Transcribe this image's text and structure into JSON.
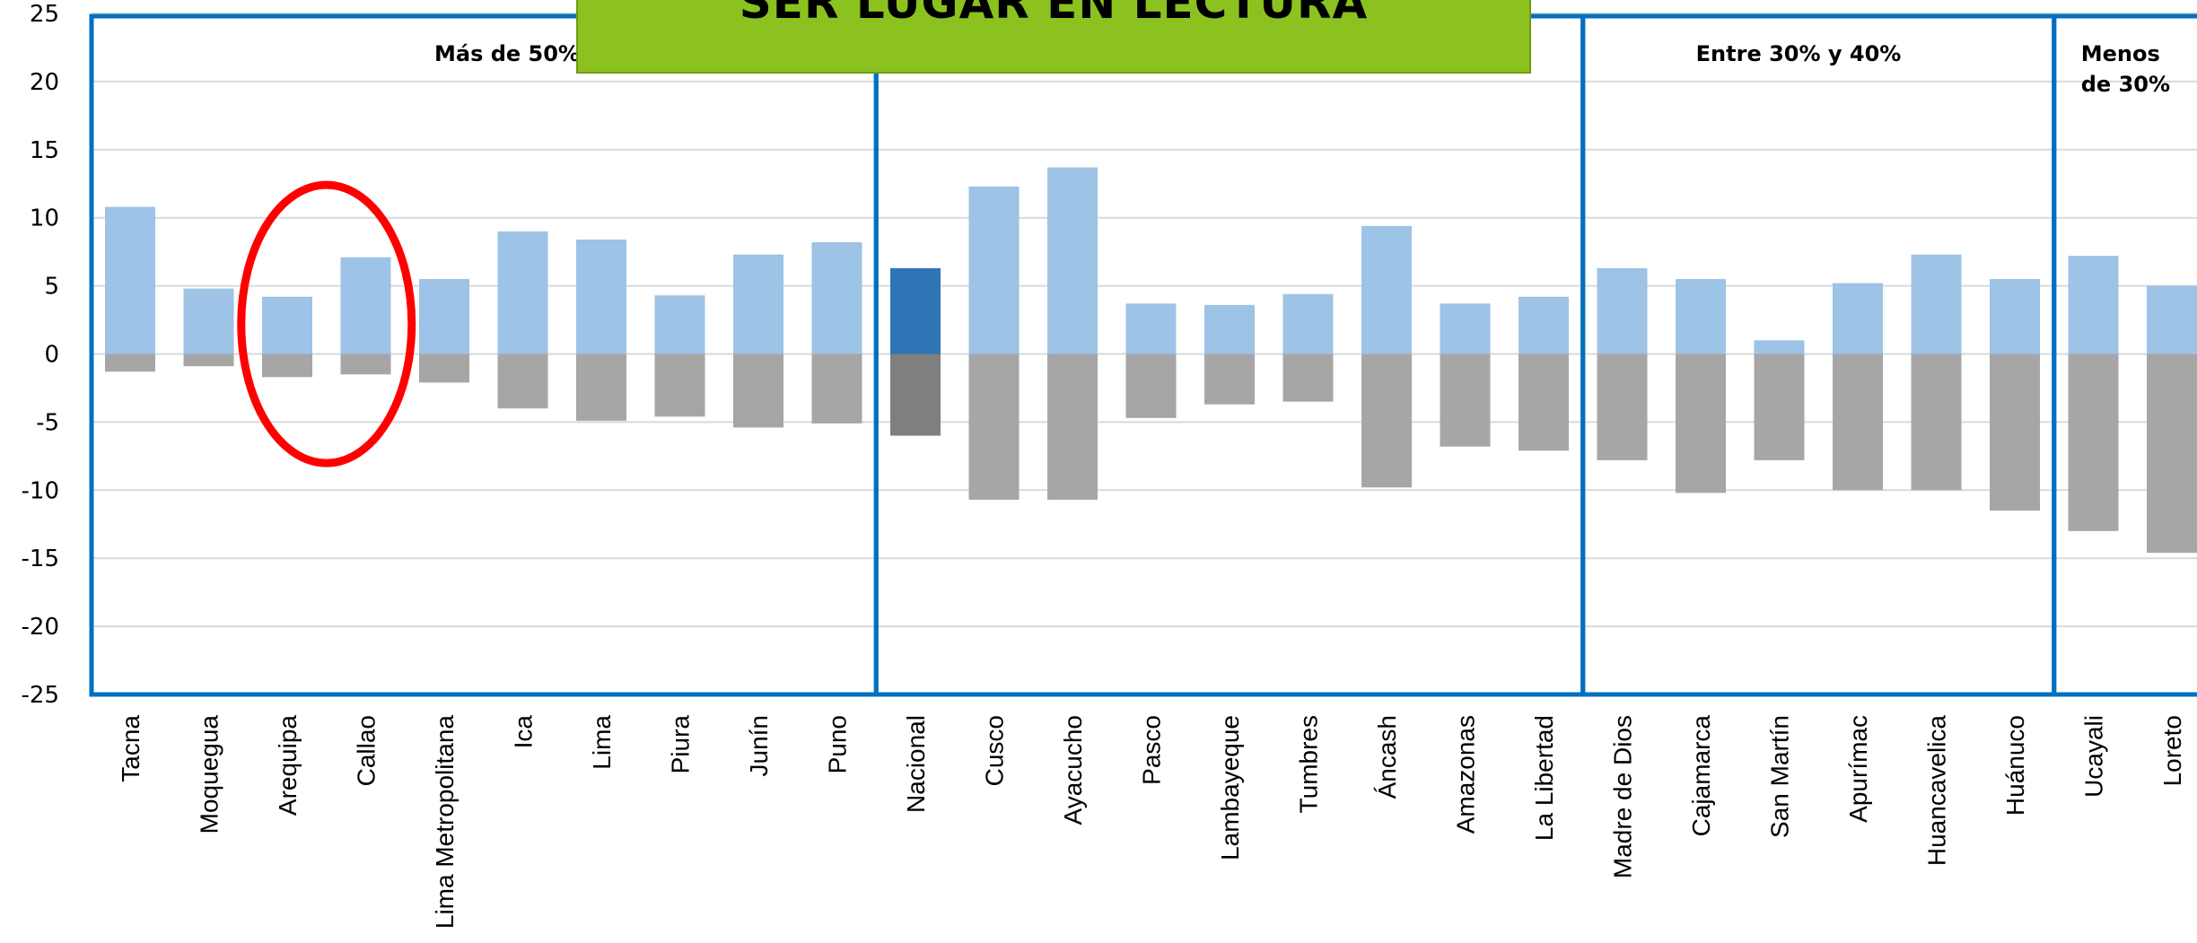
{
  "banner": {
    "text": "SER  LUGAR EN LECTURA"
  },
  "chart_data": {
    "type": "bar",
    "ylim": [
      -25,
      25
    ],
    "yticks": [
      25,
      20,
      15,
      10,
      5,
      0,
      -5,
      -10,
      -15,
      -20,
      -25
    ],
    "grid": true,
    "categories": [
      "Tacna",
      "Moquegua",
      "Arequipa",
      "Callao",
      "Lima Metropolitana",
      "Ica",
      "Lima",
      "Piura",
      "Junín",
      "Puno",
      "Nacional",
      "Cusco",
      "Ayacucho",
      "Pasco",
      "Lambayeque",
      "Tumbres",
      "Áncash",
      "Amazonas",
      "La Libertad",
      "Madre de Dios",
      "Cajamarca",
      "San Martín",
      "Apurímac",
      "Huancavelica",
      "Huánuco",
      "Ucayali",
      "Loreto"
    ],
    "series": [
      {
        "values": [
          10.8,
          4.8,
          4.2,
          7.1,
          5.5,
          9.0,
          8.4,
          4.3,
          7.3,
          8.2,
          6.3,
          12.3,
          13.7,
          3.7,
          3.6,
          4.4,
          9.4,
          3.7,
          4.2,
          6.3,
          5.5,
          1.0,
          5.2,
          7.3,
          5.5,
          7.2,
          5.0
        ]
      },
      {
        "values": [
          -1.3,
          -0.9,
          -1.7,
          -1.5,
          -2.1,
          -4.0,
          -4.9,
          -4.6,
          -5.4,
          -5.1,
          -6.0,
          -10.7,
          -10.7,
          -4.7,
          -3.7,
          -3.5,
          -9.8,
          -6.8,
          -7.1,
          -7.8,
          -10.2,
          -7.8,
          -10.0,
          -10.0,
          -11.5,
          -13.0,
          -14.6
        ]
      }
    ],
    "highlight": {
      "category": "Nacional",
      "positive_color": "#2e75b6",
      "negative_color": "#7f7f7f"
    },
    "colors": {
      "positive": "#9dc3e6",
      "negative": "#a6a6a6",
      "frame": "#0070c0",
      "grid": "#d9d9d9",
      "circle": "#ff0000"
    },
    "groups": [
      {
        "label": "Más de 50%",
        "categories": [
          "Tacna",
          "Moquegua",
          "Arequipa",
          "Callao",
          "Lima Metropolitana",
          "Ica",
          "Lima",
          "Piura",
          "Junín",
          "Puno"
        ]
      },
      {
        "label": "",
        "categories": [
          "Nacional",
          "Cusco",
          "Ayacucho",
          "Pasco",
          "Lambayeque",
          "Tumbres",
          "Áncash",
          "Amazonas",
          "La Libertad"
        ]
      },
      {
        "label": "Entre 30% y 40%",
        "categories": [
          "Madre de Dios",
          "Cajamarca",
          "San Martín",
          "Apurímac",
          "Huancavelica",
          "Huánuco"
        ]
      },
      {
        "label": [
          "Menos",
          "de 30%"
        ],
        "categories": [
          "Ucayali",
          "Loreto"
        ]
      }
    ],
    "annotation": {
      "type": "ellipse",
      "around": [
        "Arequipa",
        "Callao"
      ]
    }
  }
}
